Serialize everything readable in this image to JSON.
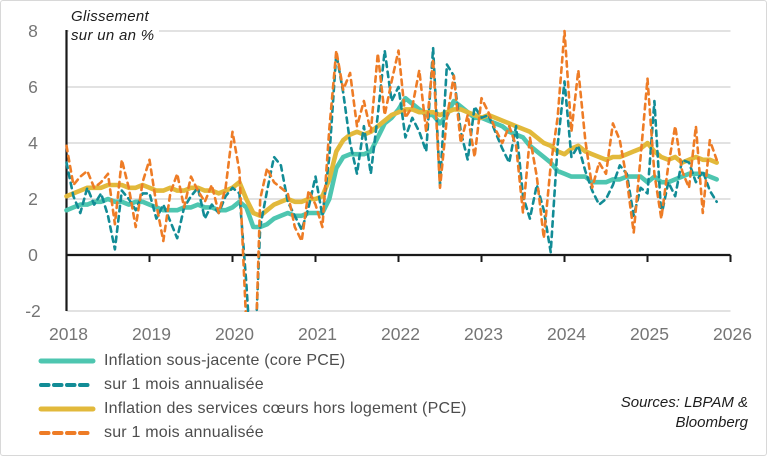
{
  "header": {
    "y_axis_title_line1": "Glissement",
    "y_axis_title_line2": "sur un an %"
  },
  "footer": {
    "sources_line1": "Sources: LBPAM &",
    "sources_line2": "Bloomberg"
  },
  "chart_data": {
    "type": "line",
    "title": "Glissement sur un an %",
    "x_start": "2018-01",
    "x_frequency": "monthly",
    "x_tick_labels": [
      "2018",
      "2019",
      "2020",
      "2021",
      "2022",
      "2023",
      "2024",
      "2025",
      "2026"
    ],
    "y_ticks": [
      8,
      6,
      4,
      2,
      0,
      -2
    ],
    "ylim": [
      -2,
      8
    ],
    "xlim_years": [
      2018,
      2026
    ],
    "grid": true,
    "legend_position": "bottom-left",
    "grid_color": "#d9d9d9",
    "axis_color": "#1a1a1a",
    "tick_label_color": "#757575",
    "series": [
      {
        "name": "Inflation sous-jacente (core PCE)",
        "style": "solid",
        "color": "#4ec6b0",
        "values": [
          1.6,
          1.7,
          1.8,
          1.8,
          1.9,
          1.9,
          2.0,
          1.9,
          1.9,
          1.8,
          1.9,
          1.9,
          1.8,
          1.7,
          1.6,
          1.6,
          1.6,
          1.7,
          1.7,
          1.8,
          1.7,
          1.7,
          1.6,
          1.6,
          1.7,
          1.9,
          1.7,
          1.0,
          1.0,
          1.1,
          1.3,
          1.4,
          1.5,
          1.4,
          1.4,
          1.5,
          1.5,
          1.5,
          2.0,
          3.1,
          3.5,
          3.6,
          3.6,
          3.6,
          3.7,
          4.2,
          4.7,
          4.9,
          5.2,
          5.6,
          5.4,
          5.2,
          5.0,
          5.0,
          4.7,
          5.0,
          5.5,
          5.3,
          5.1,
          4.9,
          4.9,
          4.8,
          4.7,
          4.6,
          4.4,
          4.3,
          4.2,
          3.9,
          3.7,
          3.5,
          3.3,
          3.0,
          2.9,
          2.8,
          2.8,
          2.8,
          2.6,
          2.6,
          2.6,
          2.7,
          2.7,
          2.8,
          2.8,
          2.8,
          2.6,
          2.8,
          2.6,
          2.6,
          2.7,
          2.8,
          2.9,
          2.9,
          2.9,
          2.8,
          2.7
        ]
      },
      {
        "name": "sur 1 mois annualisée",
        "style": "dashed",
        "color": "#128c96",
        "values": [
          3.3,
          2.1,
          1.5,
          2.4,
          1.8,
          2.2,
          1.4,
          0.2,
          2.3,
          2.0,
          1.6,
          2.2,
          2.2,
          1.3,
          1.8,
          1.2,
          0.6,
          1.7,
          2.1,
          2.4,
          1.3,
          1.8,
          1.5,
          2.1,
          2.4,
          2.2,
          -1.0,
          -5.0,
          1.0,
          2.3,
          3.5,
          3.2,
          1.9,
          1.4,
          0.9,
          1.7,
          2.8,
          1.4,
          3.5,
          7.2,
          5.8,
          4.0,
          2.9,
          4.6,
          2.9,
          5.0,
          7.3,
          5.5,
          6.0,
          4.2,
          4.9,
          4.4,
          3.7,
          7.4,
          2.5,
          6.8,
          6.4,
          4.4,
          3.4,
          5.3,
          4.9,
          5.0,
          4.4,
          3.8,
          3.3,
          4.6,
          2.1,
          1.3,
          2.5,
          1.6,
          0.1,
          3.9,
          6.2,
          3.5,
          3.9,
          3.0,
          2.3,
          1.8,
          2.0,
          2.5,
          3.2,
          2.9,
          1.4,
          2.4,
          2.2,
          5.5,
          1.4,
          2.6,
          2.1,
          3.4,
          3.3,
          2.6,
          3.0,
          2.3,
          1.9
        ]
      },
      {
        "name": "Inflation des services cœurs hors logement (PCE)",
        "style": "solid",
        "color": "#e2b93b",
        "values": [
          2.1,
          2.2,
          2.3,
          2.4,
          2.4,
          2.4,
          2.5,
          2.5,
          2.5,
          2.4,
          2.4,
          2.5,
          2.4,
          2.3,
          2.3,
          2.4,
          2.3,
          2.3,
          2.4,
          2.4,
          2.3,
          2.3,
          2.2,
          2.3,
          2.4,
          2.6,
          2.0,
          1.5,
          1.4,
          1.6,
          1.8,
          1.9,
          2.0,
          1.9,
          1.9,
          2.0,
          2.0,
          2.1,
          2.7,
          3.7,
          4.1,
          4.3,
          4.4,
          4.3,
          4.4,
          4.6,
          4.8,
          5.0,
          5.1,
          5.2,
          5.2,
          5.1,
          5.1,
          5.1,
          5.0,
          5.1,
          5.2,
          5.2,
          5.1,
          5.0,
          4.9,
          5.0,
          4.9,
          4.8,
          4.7,
          4.6,
          4.5,
          4.4,
          4.2,
          4.0,
          3.9,
          3.7,
          3.6,
          3.8,
          3.9,
          3.7,
          3.6,
          3.5,
          3.4,
          3.5,
          3.5,
          3.6,
          3.7,
          3.8,
          4.0,
          3.7,
          3.5,
          3.4,
          3.5,
          3.3,
          3.4,
          3.5,
          3.4,
          3.4,
          3.3
        ]
      },
      {
        "name": "sur 1 mois annualisée",
        "style": "dashed",
        "color": "#ee7c26",
        "values": [
          3.9,
          2.5,
          2.8,
          3.0,
          2.4,
          2.6,
          2.9,
          1.1,
          3.4,
          2.4,
          1.0,
          2.6,
          3.4,
          1.8,
          0.5,
          2.2,
          2.9,
          1.7,
          2.8,
          2.3,
          1.9,
          2.5,
          1.5,
          2.4,
          4.4,
          3.0,
          -2.5,
          -6.0,
          2.0,
          3.1,
          2.6,
          2.4,
          2.2,
          1.0,
          0.5,
          2.3,
          1.8,
          1.0,
          4.5,
          7.3,
          5.9,
          6.5,
          4.6,
          5.5,
          4.4,
          7.2,
          5.0,
          6.2,
          7.3,
          4.9,
          5.3,
          6.6,
          4.4,
          7.0,
          2.4,
          4.9,
          6.4,
          4.0,
          5.0,
          3.5,
          5.6,
          5.1,
          4.5,
          4.0,
          4.6,
          3.9,
          1.5,
          4.2,
          2.8,
          0.6,
          3.2,
          4.9,
          8.0,
          4.4,
          6.6,
          4.1,
          2.4,
          3.3,
          2.9,
          4.7,
          4.1,
          2.7,
          0.8,
          3.5,
          6.3,
          2.9,
          1.3,
          3.2,
          4.6,
          3.0,
          2.4,
          4.6,
          1.5,
          4.1,
          3.4
        ]
      }
    ]
  }
}
